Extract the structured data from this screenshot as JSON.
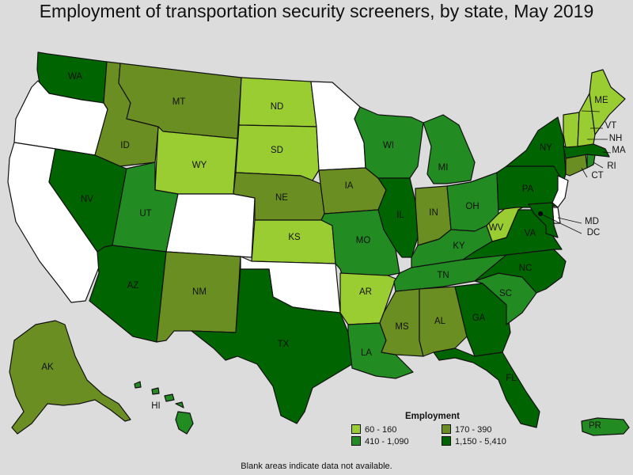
{
  "title": "Employment of transportation security screeners, by state, May 2019",
  "legend": {
    "title": "Employment",
    "items": [
      {
        "label": "60 - 160",
        "color": "#9acd32"
      },
      {
        "label": "170 - 390",
        "color": "#6b8e23"
      },
      {
        "label": "410 - 1,090",
        "color": "#228b22"
      },
      {
        "label": "1,150 - 5,410",
        "color": "#006400"
      }
    ]
  },
  "no_data_color": "#ffffff",
  "footnote": "Blank areas indicate data not available.",
  "states": [
    {
      "code": "WA",
      "bin": 3
    },
    {
      "code": "OR",
      "bin": null
    },
    {
      "code": "CA",
      "bin": null
    },
    {
      "code": "ID",
      "bin": 1
    },
    {
      "code": "NV",
      "bin": 3
    },
    {
      "code": "MT",
      "bin": 1
    },
    {
      "code": "WY",
      "bin": 0
    },
    {
      "code": "UT",
      "bin": 2
    },
    {
      "code": "AZ",
      "bin": 3
    },
    {
      "code": "CO",
      "bin": null
    },
    {
      "code": "NM",
      "bin": 1
    },
    {
      "code": "ND",
      "bin": 0
    },
    {
      "code": "SD",
      "bin": 0
    },
    {
      "code": "NE",
      "bin": 1
    },
    {
      "code": "KS",
      "bin": 0
    },
    {
      "code": "OK",
      "bin": null
    },
    {
      "code": "TX",
      "bin": 3
    },
    {
      "code": "MN",
      "bin": null
    },
    {
      "code": "IA",
      "bin": 1
    },
    {
      "code": "MO",
      "bin": 2
    },
    {
      "code": "AR",
      "bin": 0
    },
    {
      "code": "LA",
      "bin": 2
    },
    {
      "code": "WI",
      "bin": 2
    },
    {
      "code": "IL",
      "bin": 3
    },
    {
      "code": "MI",
      "bin": 2
    },
    {
      "code": "IN",
      "bin": 1
    },
    {
      "code": "OH",
      "bin": 2
    },
    {
      "code": "KY",
      "bin": 2
    },
    {
      "code": "TN",
      "bin": 2
    },
    {
      "code": "MS",
      "bin": 1
    },
    {
      "code": "AL",
      "bin": 1
    },
    {
      "code": "GA",
      "bin": 3
    },
    {
      "code": "FL",
      "bin": 3
    },
    {
      "code": "SC",
      "bin": 2
    },
    {
      "code": "NC",
      "bin": 3
    },
    {
      "code": "VA",
      "bin": 3
    },
    {
      "code": "WV",
      "bin": 0
    },
    {
      "code": "PA",
      "bin": 3
    },
    {
      "code": "NY",
      "bin": 3
    },
    {
      "code": "NJ",
      "bin": null
    },
    {
      "code": "DE",
      "bin": null
    },
    {
      "code": "MD",
      "bin": 3
    },
    {
      "code": "DC",
      "bin": 3
    },
    {
      "code": "CT",
      "bin": 1
    },
    {
      "code": "RI",
      "bin": 2
    },
    {
      "code": "MA",
      "bin": 3
    },
    {
      "code": "VT",
      "bin": 0
    },
    {
      "code": "NH",
      "bin": 0
    },
    {
      "code": "ME",
      "bin": 0
    },
    {
      "code": "AK",
      "bin": 1
    },
    {
      "code": "HI",
      "bin": 2
    },
    {
      "code": "PR",
      "bin": 2
    }
  ]
}
